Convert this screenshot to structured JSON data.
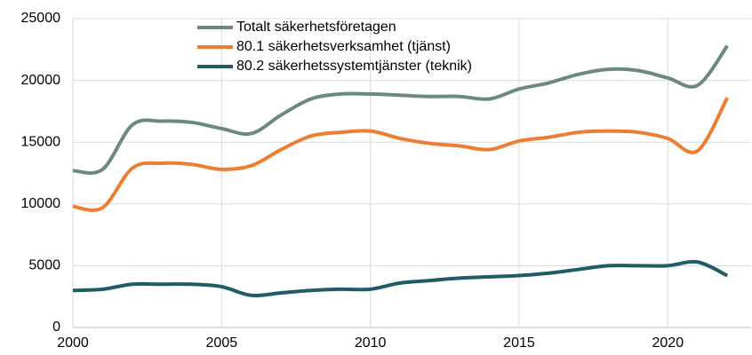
{
  "chart_data": {
    "type": "line",
    "x": [
      2000,
      2001,
      2002,
      2003,
      2004,
      2005,
      2006,
      2007,
      2008,
      2009,
      2010,
      2011,
      2012,
      2013,
      2014,
      2015,
      2016,
      2017,
      2018,
      2019,
      2020,
      2021,
      2022
    ],
    "series": [
      {
        "name": "Totalt säkerhetsföretagen",
        "color": "#6b8a7a",
        "values": [
          12700,
          12800,
          16400,
          16700,
          16600,
          16100,
          15700,
          17200,
          18500,
          18900,
          18900,
          18800,
          18700,
          18700,
          18500,
          19300,
          19800,
          20500,
          20900,
          20800,
          20200,
          19600,
          22800
        ]
      },
      {
        "name": "80.1 säkerhetsverksamhet (tjänst)",
        "color": "#ed7d31",
        "values": [
          9800,
          9700,
          12900,
          13300,
          13200,
          12800,
          13100,
          14400,
          15500,
          15800,
          15900,
          15300,
          14900,
          14700,
          14400,
          15100,
          15400,
          15800,
          15900,
          15800,
          15300,
          14300,
          18600
        ]
      },
      {
        "name": "80.2 säkerhetssystemtjänster (teknik)",
        "color": "#1f5c63",
        "values": [
          3000,
          3100,
          3500,
          3500,
          3500,
          3300,
          2600,
          2800,
          3000,
          3100,
          3100,
          3600,
          3800,
          4000,
          4100,
          4200,
          4400,
          4700,
          5000,
          5000,
          5000,
          5300,
          4200
        ]
      }
    ],
    "xlim": [
      2000,
      2022.8
    ],
    "xticks": [
      2000,
      2005,
      2010,
      2015,
      2020
    ],
    "ylim": [
      0,
      25000
    ],
    "yticks": [
      0,
      5000,
      10000,
      15000,
      20000,
      25000
    ],
    "grid": true,
    "legend": "top"
  }
}
